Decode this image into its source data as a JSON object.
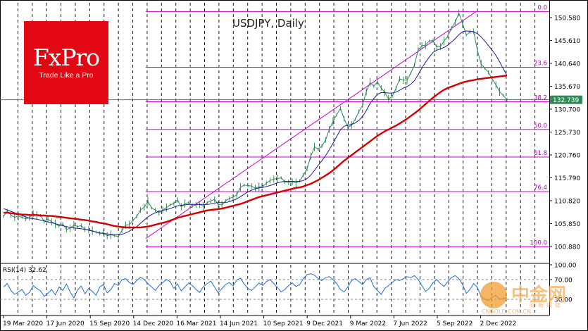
{
  "chart_data": {
    "type": "line",
    "title": "USDJPY, Daily",
    "price_axis": {
      "ticks": [
        "150.580",
        "145.610",
        "140.640",
        "135.670",
        "130.700",
        "125.730",
        "120.760",
        "115.790",
        "110.820",
        "105.850",
        "100.880"
      ],
      "ylim": [
        97.5,
        153.8
      ],
      "current_price": "132.739"
    },
    "x_tick_labels": [
      "19 Mar 2020",
      "17 Jun 2020",
      "15 Sep 2020",
      "14 Dec 2020",
      "16 Mar 2021",
      "14 Jun 2021",
      "10 Sep 2021",
      "9 Dec 2021",
      "9 Mar 2022",
      "7 Jun 2022",
      "5 Sep 2022",
      "2 Dec 2022"
    ],
    "fibonacci": {
      "levels": [
        {
          "label": "0.0",
          "price": 151.9
        },
        {
          "label": "23.6",
          "price": 139.8
        },
        {
          "label": "38.2",
          "price": 132.3
        },
        {
          "label": "50.0",
          "price": 126.3
        },
        {
          "label": "61.8",
          "price": 120.3
        },
        {
          "label": "76.4",
          "price": 112.8
        },
        {
          "label": "100.0",
          "price": 100.8
        }
      ]
    },
    "trendline": {
      "from": {
        "date": "Jan 2021",
        "price": 102.6
      },
      "to": {
        "date": "Oct 2022",
        "price": 151.9
      }
    },
    "series": [
      {
        "name": "",
        "color": "#2e8b57",
        "values": [
          107.4,
          108.6,
          107.7,
          107.2,
          107.5,
          107.2,
          106.9,
          107.1,
          108.0,
          107.6,
          107.6,
          106.3,
          106.8,
          106.2,
          105.8,
          105.3,
          105.7,
          104.6,
          104.8,
          105.5,
          105.2,
          105.4,
          104.6,
          104.5,
          104.3,
          104.0,
          103.7,
          103.9,
          103.2,
          103.4,
          103.2,
          103.0,
          104.4,
          105.5,
          105.6,
          106.6,
          107.4,
          108.8,
          109.4,
          110.7,
          109.2,
          108.8,
          108.2,
          108.8,
          109.3,
          109.9,
          110.2,
          111.0,
          109.5,
          110.2,
          110.4,
          109.7,
          109.9,
          110.0,
          109.6,
          110.4,
          110.8,
          111.1,
          110.0,
          109.9,
          110.8,
          111.3,
          111.6,
          112.1,
          113.7,
          114.2,
          114.1,
          114.0,
          113.5,
          113.8,
          113.9,
          114.6,
          115.2,
          115.5,
          115.6,
          115.8,
          114.9,
          114.8,
          114.9,
          114.7,
          115.1,
          116.4,
          117.8,
          120.5,
          122.5,
          122.0,
          122.7,
          124.0,
          126.3,
          128.0,
          129.5,
          130.9,
          128.6,
          126.8,
          127.2,
          128.5,
          130.2,
          131.6,
          134.5,
          136.5,
          135.7,
          136.6,
          135.3,
          134.3,
          132.9,
          133.5,
          135.2,
          137.3,
          137.0,
          137.0,
          138.5,
          140.3,
          143.6,
          144.5,
          144.6,
          145.5,
          145.6,
          144.2,
          144.3,
          145.5,
          146.5,
          148.3,
          149.6,
          151.6,
          149.3,
          146.8,
          147.5,
          147.6,
          143.5,
          140.5,
          139.6,
          138.7,
          137.2,
          136.0,
          134.5,
          133.7,
          132.7
        ]
      },
      {
        "name": "",
        "color": "#1a1aa0",
        "values": [
          109.1,
          108.8,
          108.5,
          108.2,
          107.9,
          107.6,
          107.3,
          107.0,
          106.9,
          106.8,
          106.6,
          106.4,
          106.2,
          106.0,
          105.8,
          105.6,
          105.4,
          105.2,
          105.0,
          104.9,
          104.8,
          104.7,
          104.6,
          104.4,
          104.2,
          104.0,
          103.8,
          103.7,
          103.6,
          103.5,
          103.4,
          103.4,
          103.5,
          103.8,
          104.2,
          104.7,
          105.2,
          105.9,
          106.6,
          107.3,
          107.8,
          108.2,
          108.5,
          108.7,
          108.9,
          109.1,
          109.4,
          109.7,
          109.8,
          109.9,
          110.0,
          110.0,
          110.0,
          110.0,
          110.0,
          110.0,
          110.1,
          110.3,
          110.4,
          110.4,
          110.4,
          110.6,
          110.9,
          111.2,
          111.7,
          112.2,
          112.7,
          113.1,
          113.4,
          113.6,
          113.7,
          113.9,
          114.1,
          114.4,
          114.7,
          114.9,
          115.0,
          115.0,
          115.0,
          115.0,
          115.0,
          115.2,
          115.6,
          116.4,
          117.4,
          118.5,
          119.5,
          120.6,
          121.9,
          123.3,
          124.8,
          126.2,
          127.0,
          127.2,
          127.4,
          127.7,
          128.3,
          129.1,
          130.4,
          131.9,
          133.0,
          133.9,
          134.3,
          134.3,
          134.2,
          134.2,
          134.4,
          134.8,
          135.3,
          135.6,
          136.1,
          136.9,
          138.2,
          139.6,
          140.9,
          142.0,
          143.0,
          143.5,
          143.8,
          144.1,
          144.6,
          145.3,
          146.0,
          146.9,
          147.5,
          147.7,
          147.6,
          147.5,
          147.1,
          146.4,
          145.5,
          144.5,
          143.5,
          142.4,
          141.0,
          139.5,
          138.0
        ]
      },
      {
        "name": "",
        "color": "#d40000",
        "values": [
          108.2,
          108.2,
          108.1,
          108.0,
          107.9,
          107.8,
          107.8,
          107.7,
          107.7,
          107.7,
          107.6,
          107.6,
          107.5,
          107.5,
          107.4,
          107.3,
          107.2,
          107.1,
          107.0,
          106.9,
          106.8,
          106.7,
          106.6,
          106.5,
          106.3,
          106.2,
          106.0,
          105.9,
          105.7,
          105.5,
          105.3,
          105.2,
          105.1,
          105.0,
          105.0,
          105.0,
          105.0,
          105.0,
          105.1,
          105.2,
          105.4,
          105.6,
          105.8,
          106.0,
          106.2,
          106.5,
          106.8,
          107.1,
          107.3,
          107.5,
          107.7,
          107.9,
          108.1,
          108.3,
          108.5,
          108.7,
          108.8,
          108.9,
          109.0,
          109.1,
          109.3,
          109.5,
          109.7,
          109.9,
          110.1,
          110.4,
          110.7,
          111.0,
          111.3,
          111.6,
          111.8,
          112.0,
          112.2,
          112.4,
          112.6,
          112.8,
          113.0,
          113.2,
          113.4,
          113.6,
          113.7,
          113.9,
          114.2,
          114.5,
          114.9,
          115.3,
          115.8,
          116.3,
          116.8,
          117.4,
          118.1,
          118.8,
          119.5,
          120.1,
          120.7,
          121.3,
          121.9,
          122.5,
          123.1,
          123.7,
          124.3,
          124.9,
          125.4,
          125.9,
          126.3,
          126.7,
          127.1,
          127.6,
          128.1,
          128.6,
          129.2,
          129.8,
          130.4,
          131.1,
          131.8,
          132.5,
          133.2,
          133.8,
          134.4,
          134.9,
          135.3,
          135.6,
          135.9,
          136.2,
          136.5,
          136.7,
          136.9,
          137.0,
          137.2,
          137.3,
          137.4,
          137.5,
          137.6,
          137.7,
          137.8,
          137.9,
          138.0
        ]
      }
    ],
    "rsi": {
      "label": "RSI(14) 32.62",
      "ticks": [
        "100.00",
        "70.00",
        "30.00"
      ],
      "ylim": [
        0,
        100
      ],
      "values": [
        55,
        62,
        48,
        40,
        45,
        50,
        38,
        44,
        58,
        52,
        47,
        36,
        42,
        50,
        39,
        55,
        48,
        61,
        45,
        33,
        49,
        57,
        41,
        52,
        46,
        38,
        55,
        60,
        43,
        50,
        62,
        58,
        70,
        72,
        64,
        60,
        68,
        75,
        70,
        62,
        55,
        48,
        58,
        64,
        70,
        66,
        52,
        61,
        47,
        55,
        63,
        58,
        50,
        44,
        56,
        62,
        67,
        55,
        43,
        52,
        60,
        64,
        57,
        69,
        73,
        61,
        52,
        48,
        55,
        63,
        58,
        66,
        70,
        62,
        54,
        45,
        50,
        58,
        63,
        56,
        60,
        72,
        80,
        82,
        79,
        72,
        68,
        74,
        76,
        70,
        62,
        50,
        45,
        55,
        68,
        72,
        66,
        60,
        70,
        74,
        56,
        48,
        40,
        52,
        58,
        64,
        70,
        68,
        72,
        76,
        74,
        78,
        70,
        58,
        46,
        52,
        64,
        70,
        62,
        56,
        66,
        74,
        78,
        72,
        60,
        42,
        50,
        62,
        54,
        36,
        30,
        28,
        34,
        38,
        30,
        32,
        33
      ]
    }
  },
  "branding": {
    "logo_main": "FxPro",
    "logo_sub": "Trade Like a Pro",
    "watermark": "中金网",
    "watermark_sub": "CNGOLD.COM.CN",
    "watermark_sub2": "财新媒体"
  }
}
